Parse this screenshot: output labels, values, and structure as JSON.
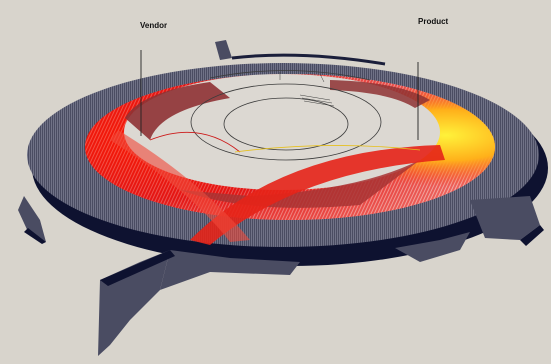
{
  "labels": {
    "vendor": "Vendor",
    "product": "Product"
  },
  "colors": {
    "background": "#d8d4cc",
    "bar_fill": "#4a4c62",
    "bar_shadow": "#0e1230",
    "ribbon_hot": "#e01010",
    "ribbon_warm": "#ff7a1a",
    "ribbon_yellow": "#ffe21a",
    "ribbon_band": "#8e3234",
    "inner_disc": "#dcd8d2",
    "inner_lines": "#3c3c3c"
  }
}
